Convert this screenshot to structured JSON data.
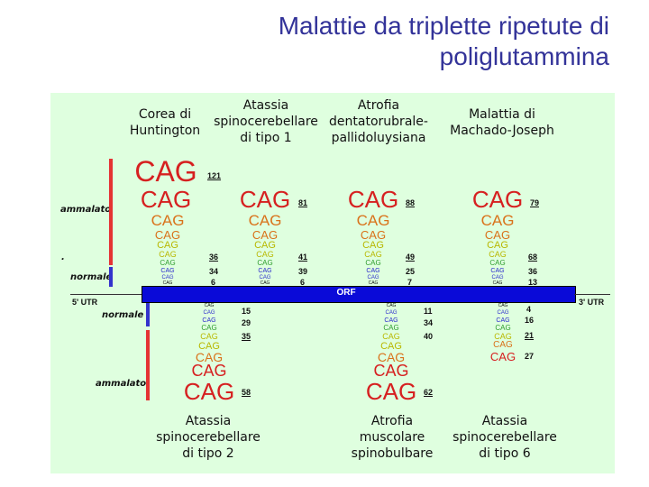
{
  "title_line1": "Malattie da triplette ripetute di",
  "title_line2": "poliglutammina",
  "diseases_top": [
    "Corea di\nHuntington",
    "Atassia\nspinocerebellare\ndi tipo 1",
    "Atrofia\ndentatorubrale-\npallidoluysiana",
    "Malattia di\nMachado-Joseph"
  ],
  "diseases_bottom": [
    "Atassia\nspinocerebellare\ndi tipo 2",
    "Atrofia\nmuscolare\nspinobulbare",
    "Atassia\nspinocerebellare\ndi tipo 6"
  ],
  "labels": {
    "ammalato": "ammalato",
    "normale": "normale",
    "dot": ".",
    "utr5": "5' UTR",
    "utr3": "3' UTR",
    "orf": "ORF",
    "triplet": "CAG"
  },
  "numbers": {
    "c1": [
      "121",
      "36",
      "34",
      "6"
    ],
    "c2": [
      "81",
      "41",
      "39",
      "6"
    ],
    "c3": [
      "88",
      "49",
      "25",
      "7"
    ],
    "c4": [
      "79",
      "68",
      "36",
      "13"
    ],
    "b1": [
      "15",
      "29",
      "35",
      "58"
    ],
    "b2": [
      "11",
      "34",
      "40",
      "62"
    ],
    "b3": [
      "4",
      "16",
      "21",
      "27"
    ]
  },
  "colors": {
    "title": "#333399",
    "panel": "#dfffdf",
    "orf": "#0a0ad8",
    "bar_red": "#e53333",
    "bar_blue": "#3333cc",
    "cag_red": "#d62020",
    "cag_orange": "#d9721a",
    "cag_yellow": "#b8b800",
    "cag_green": "#2e9c2e",
    "cag_blue": "#2a2acc"
  }
}
